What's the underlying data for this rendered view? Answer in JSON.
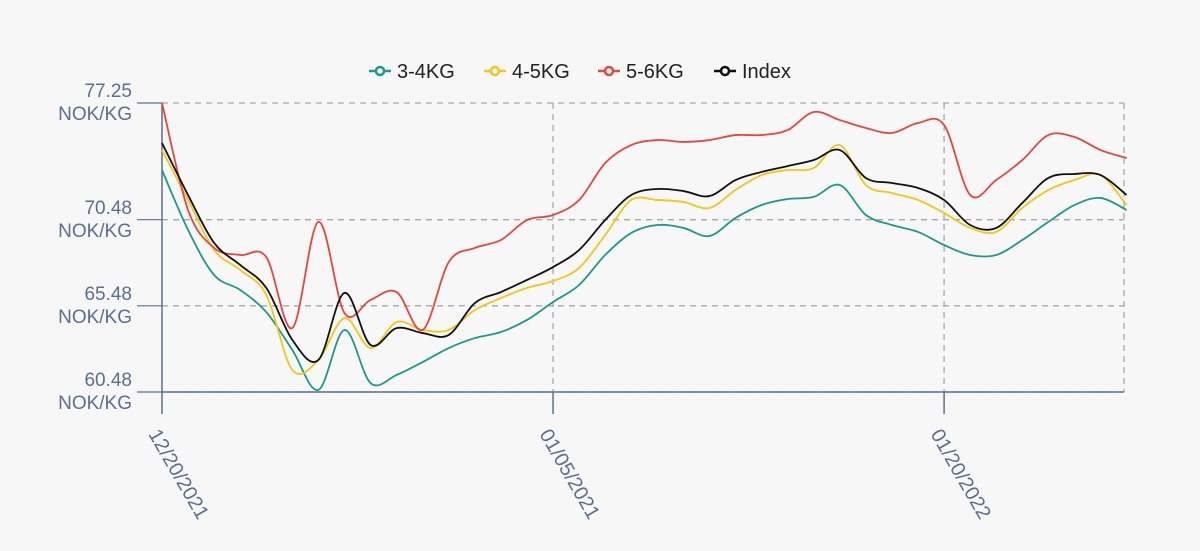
{
  "chart_data": {
    "type": "line",
    "categories": [
      "12/20/2021",
      null,
      null,
      null,
      null,
      null,
      null,
      null,
      null,
      null,
      null,
      null,
      null,
      null,
      null,
      "01/05/2021",
      null,
      null,
      null,
      null,
      null,
      null,
      null,
      null,
      null,
      null,
      null,
      null,
      null,
      null,
      "01/20/2022",
      null,
      null,
      null,
      null,
      null,
      null,
      null
    ],
    "series": [
      {
        "name": "3-4KG",
        "color": "#1a9a8a",
        "values": [
          73.36,
          69.88,
          67.27,
          66.4,
          65.12,
          62.92,
          60.6,
          64.08,
          61.0,
          61.47,
          62.22,
          63.03,
          63.61,
          63.96,
          64.66,
          65.7,
          66.69,
          68.43,
          69.71,
          70.17,
          70.0,
          69.53,
          70.58,
          71.33,
          71.68,
          71.8,
          72.49,
          70.75,
          70.17,
          69.77,
          69.01,
          68.43,
          68.43,
          69.3,
          70.35,
          71.33,
          71.74,
          71.04
        ]
      },
      {
        "name": "4-5KG",
        "color": "#f5c518",
        "values": [
          74.52,
          71.62,
          68.72,
          67.56,
          66.11,
          61.76,
          62.34,
          64.77,
          63.03,
          64.54,
          64.08,
          64.08,
          65.24,
          65.93,
          66.52,
          66.92,
          67.68,
          69.59,
          71.62,
          71.62,
          71.51,
          71.16,
          72.2,
          73.07,
          73.36,
          73.48,
          74.81,
          72.49,
          72.03,
          71.62,
          70.87,
          70.0,
          69.77,
          71.16,
          72.2,
          72.78,
          73.07,
          71.33
        ]
      },
      {
        "name": "5-6KG",
        "color": "#e8453c",
        "values": [
          77.25,
          71.04,
          68.84,
          68.43,
          68.31,
          64.19,
          70.35,
          65.06,
          65.82,
          66.28,
          64.08,
          68.02,
          68.84,
          69.3,
          70.46,
          70.75,
          71.62,
          73.77,
          74.81,
          75.1,
          74.99,
          75.1,
          75.39,
          75.39,
          75.68,
          76.73,
          76.26,
          75.8,
          75.51,
          76.09,
          75.97,
          71.91,
          72.78,
          73.94,
          75.39,
          75.28,
          74.52,
          74.06
        ]
      },
      {
        "name": "Index",
        "color": "#111111",
        "values": [
          74.93,
          71.91,
          69.13,
          67.85,
          66.52,
          63.5,
          62.34,
          66.23,
          63.21,
          64.19,
          63.9,
          63.79,
          65.64,
          66.28,
          66.98,
          67.73,
          68.72,
          70.46,
          71.91,
          72.26,
          72.14,
          71.85,
          72.78,
          73.25,
          73.59,
          73.94,
          74.52,
          72.9,
          72.61,
          72.32,
          71.62,
          70.17,
          70.0,
          71.45,
          72.9,
          73.13,
          73.07,
          71.91
        ]
      }
    ],
    "ylim": [
      60.48,
      77.25
    ],
    "yticks": [
      {
        "value": 60.48,
        "label": "60.48 NOK/KG"
      },
      {
        "value": 65.48,
        "label": "65.48 NOK/KG"
      },
      {
        "value": 70.48,
        "label": "70.48 NOK/KG"
      },
      {
        "value": 77.25,
        "label": "77.25 NOK/KG"
      }
    ],
    "grid": true,
    "legend": "top"
  }
}
